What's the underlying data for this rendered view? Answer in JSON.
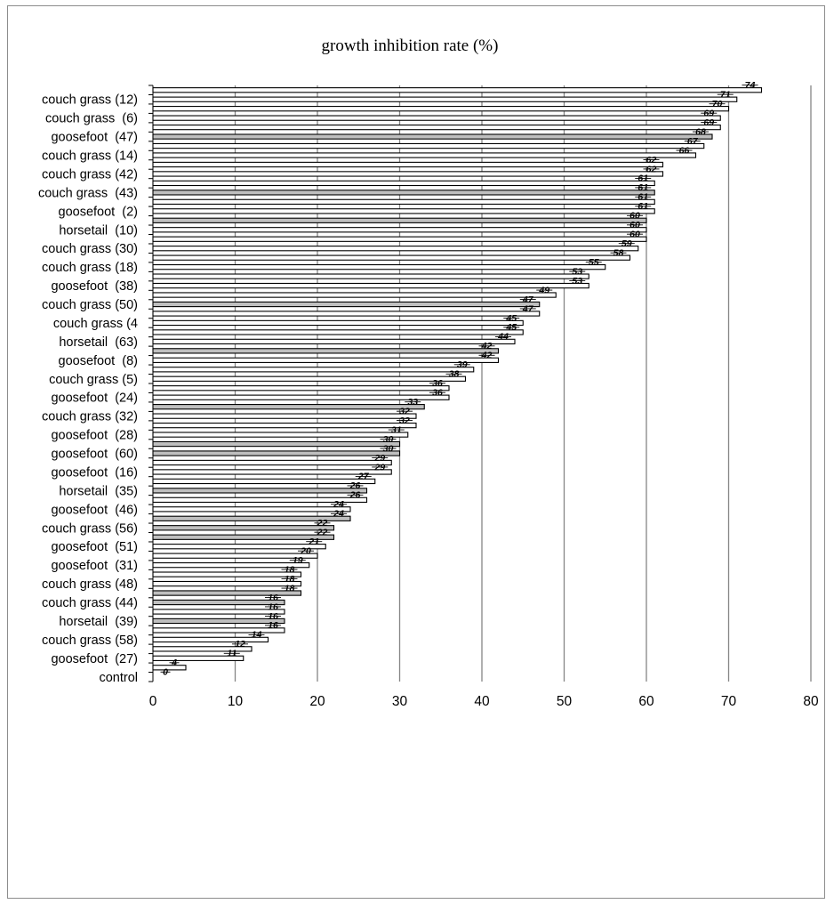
{
  "chart_data": {
    "type": "bar",
    "orientation": "horizontal",
    "title": "growth inhibition rate (%)",
    "xlabel": "",
    "ylabel": "",
    "xlim": [
      0,
      80
    ],
    "x_ticks": [
      "0",
      "10",
      "20",
      "30",
      "40",
      "50",
      "60",
      "70",
      "80"
    ],
    "grid": "vertical",
    "legend": "none",
    "colors": {
      "light": "#ffffff",
      "dark": "#bfbfbf",
      "edge": "#000000",
      "grid": "#868686"
    },
    "category_labels": [
      "couch grass (12)",
      "couch grass  (6)",
      "goosefoot  (47)",
      "couch grass (14)",
      "couch grass (42)",
      "couch grass  (43)",
      "goosefoot  (2)",
      "horsetail  (10)",
      "couch grass (30)",
      "couch grass (18)",
      "goosefoot  (38)",
      "couch grass (50)",
      "couch grass (4",
      "horsetail  (63)",
      "goosefoot  (8)",
      "couch grass (5)",
      "goosefoot  (24)",
      "couch grass (32)",
      "goosefoot  (28)",
      "goosefoot  (60)",
      "goosefoot  (16)",
      "horsetail  (35)",
      "goosefoot  (46)",
      "couch grass (56)",
      "goosefoot  (51)",
      "goosefoot  (31)",
      "couch grass (48)",
      "couch grass (44)",
      "horsetail  (39)",
      "couch grass (58)",
      "goosefoot  (27)",
      "control"
    ],
    "values": [
      74,
      71,
      70,
      69,
      69,
      68,
      67,
      66,
      62,
      62,
      61,
      61,
      61,
      61,
      60,
      60,
      60,
      59,
      58,
      55,
      53,
      53,
      49,
      47,
      47,
      45,
      45,
      44,
      42,
      42,
      39,
      38,
      36,
      36,
      33,
      32,
      32,
      31,
      30,
      30,
      29,
      29,
      27,
      26,
      26,
      24,
      24,
      22,
      22,
      21,
      20,
      19,
      18,
      18,
      18,
      16,
      16,
      16,
      16,
      14,
      12,
      11,
      4,
      0
    ],
    "shading": [
      0,
      0,
      0,
      0,
      0,
      1,
      0,
      0,
      0,
      0,
      0,
      1,
      0,
      0,
      1,
      0,
      0,
      0,
      0,
      0,
      0,
      0,
      0,
      1,
      0,
      0,
      0,
      0,
      1,
      0,
      0,
      0,
      0,
      0,
      1,
      0,
      0,
      0,
      1,
      1,
      0,
      0,
      0,
      1,
      0,
      0,
      1,
      1,
      1,
      0,
      0,
      0,
      0,
      0,
      1,
      1,
      0,
      1,
      0,
      0,
      0,
      0,
      0,
      0
    ]
  }
}
